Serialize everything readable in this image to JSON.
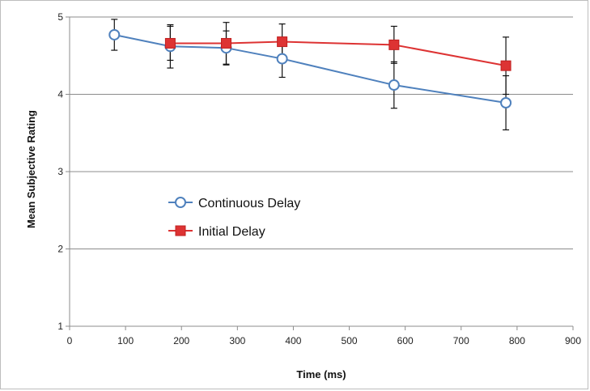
{
  "chart_data": {
    "type": "line",
    "title": "",
    "xlabel": "Time (ms)",
    "ylabel": "Mean Subjective Rating",
    "xlim": [
      0,
      900
    ],
    "ylim": [
      1,
      5
    ],
    "xticks": [
      0,
      100,
      200,
      300,
      400,
      500,
      600,
      700,
      800,
      900
    ],
    "yticks": [
      1,
      2,
      3,
      4,
      5
    ],
    "grid": "horizontal",
    "legend_position": "center-left",
    "series": [
      {
        "name": "Continuous Delay",
        "color": "#4f81bd",
        "marker": "open-circle",
        "x": [
          80,
          180,
          280,
          380,
          580,
          780
        ],
        "y": [
          4.77,
          4.62,
          4.6,
          4.46,
          4.12,
          3.89
        ],
        "error": [
          0.2,
          0.28,
          0.22,
          0.24,
          0.3,
          0.35
        ]
      },
      {
        "name": "Initial Delay",
        "color": "#dd3333",
        "marker": "filled-square",
        "x": [
          180,
          280,
          380,
          580,
          780
        ],
        "y": [
          4.66,
          4.66,
          4.68,
          4.64,
          4.37
        ],
        "error": [
          0.22,
          0.27,
          0.23,
          0.24,
          0.37
        ]
      }
    ]
  }
}
